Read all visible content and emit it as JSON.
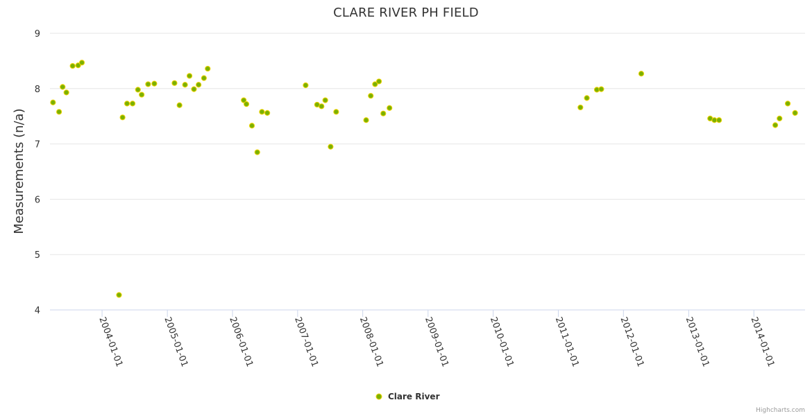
{
  "chart_data": {
    "type": "scatter",
    "title": "CLARE RIVER PH FIELD",
    "ylabel": "Measurements (n/a)",
    "xlabel": "",
    "ylim": [
      4,
      9
    ],
    "yticks": [
      "4",
      "5",
      "6",
      "7",
      "8",
      "9"
    ],
    "xlim": [
      "2003-03-15",
      "2014-10-15"
    ],
    "xticks": [
      "2004-01-01",
      "2005-01-01",
      "2006-01-01",
      "2007-01-01",
      "2008-01-01",
      "2009-01-01",
      "2010-01-01",
      "2011-01-01",
      "2012-01-01",
      "2013-01-01",
      "2014-01-01"
    ],
    "grid": true,
    "legend": "bottom-center",
    "credits": "Highcharts.com",
    "colors": {
      "marker_fill": "#7cb100",
      "marker_stroke": "#f2d400",
      "grid": "#e6e6e6",
      "axis": "#ccd6eb"
    },
    "series": [
      {
        "name": "Clare River",
        "points": [
          [
            "2003-04-01",
            7.75
          ],
          [
            "2003-05-05",
            7.58
          ],
          [
            "2003-05-25",
            8.03
          ],
          [
            "2003-06-15",
            7.93
          ],
          [
            "2003-07-20",
            8.41
          ],
          [
            "2003-08-20",
            8.42
          ],
          [
            "2003-09-10",
            8.47
          ],
          [
            "2004-04-05",
            4.27
          ],
          [
            "2004-04-25",
            7.48
          ],
          [
            "2004-05-20",
            7.73
          ],
          [
            "2004-06-20",
            7.73
          ],
          [
            "2004-07-20",
            7.98
          ],
          [
            "2004-08-10",
            7.89
          ],
          [
            "2004-09-15",
            8.08
          ],
          [
            "2004-10-20",
            8.09
          ],
          [
            "2005-02-10",
            8.1
          ],
          [
            "2005-03-10",
            7.7
          ],
          [
            "2005-04-10",
            8.07
          ],
          [
            "2005-05-05",
            8.23
          ],
          [
            "2005-05-30",
            7.99
          ],
          [
            "2005-06-25",
            8.07
          ],
          [
            "2005-07-25",
            8.19
          ],
          [
            "2005-08-15",
            8.36
          ],
          [
            "2006-03-05",
            7.79
          ],
          [
            "2006-03-20",
            7.72
          ],
          [
            "2006-04-20",
            7.33
          ],
          [
            "2006-05-20",
            6.85
          ],
          [
            "2006-06-15",
            7.58
          ],
          [
            "2006-07-15",
            7.56
          ],
          [
            "2007-02-15",
            8.06
          ],
          [
            "2007-04-20",
            7.71
          ],
          [
            "2007-05-15",
            7.68
          ],
          [
            "2007-06-05",
            7.79
          ],
          [
            "2007-07-05",
            6.95
          ],
          [
            "2007-08-05",
            7.58
          ],
          [
            "2008-01-20",
            7.43
          ],
          [
            "2008-02-15",
            7.87
          ],
          [
            "2008-03-10",
            8.08
          ],
          [
            "2008-04-01",
            8.13
          ],
          [
            "2008-04-25",
            7.55
          ],
          [
            "2008-05-30",
            7.65
          ],
          [
            "2011-05-05",
            7.66
          ],
          [
            "2011-06-10",
            7.83
          ],
          [
            "2011-08-05",
            7.98
          ],
          [
            "2011-08-30",
            7.99
          ],
          [
            "2012-04-10",
            8.27
          ],
          [
            "2013-05-01",
            7.46
          ],
          [
            "2013-05-25",
            7.43
          ],
          [
            "2013-06-20",
            7.43
          ],
          [
            "2014-05-01",
            7.34
          ],
          [
            "2014-05-25",
            7.46
          ],
          [
            "2014-07-10",
            7.73
          ],
          [
            "2014-08-20",
            7.56
          ]
        ]
      }
    ]
  }
}
